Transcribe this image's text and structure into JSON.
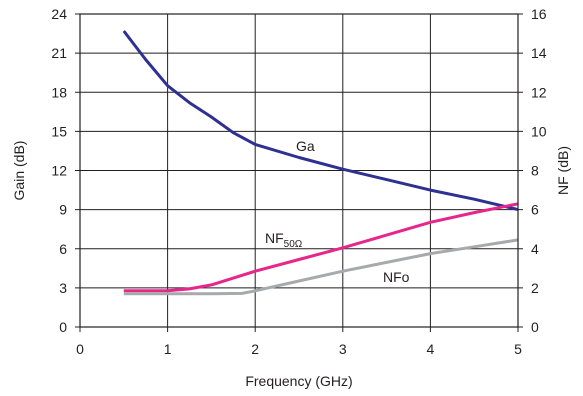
{
  "chart_data": {
    "type": "line",
    "xlabel": "Frequency (GHz)",
    "ylabel_left": "Gain (dB)",
    "ylabel_right": "NF (dB)",
    "xlim": [
      0,
      5
    ],
    "ylim_left": [
      0,
      24
    ],
    "ylim_right": [
      0,
      16
    ],
    "x_ticks": [
      0,
      1,
      2,
      3,
      4,
      5
    ],
    "y_left_ticks": [
      0,
      3,
      6,
      9,
      12,
      15,
      18,
      21,
      24
    ],
    "y_right_ticks": [
      0,
      2,
      4,
      6,
      8,
      10,
      12,
      14,
      16
    ],
    "grid": true,
    "series": [
      {
        "name": "Ga",
        "axis": "left",
        "color": "#2e3192",
        "x": [
          0.5,
          0.75,
          1.0,
          1.25,
          1.5,
          1.75,
          2.0,
          2.5,
          3.0,
          3.5,
          4.0,
          4.5,
          5.0
        ],
        "y": [
          22.7,
          20.5,
          18.5,
          17.2,
          16.1,
          14.9,
          14.0,
          13.0,
          12.1,
          11.3,
          10.5,
          9.8,
          9.0
        ]
      },
      {
        "name": "NF",
        "name_sub": "50Ω",
        "axis": "right",
        "color": "#e6268b",
        "x": [
          0.5,
          1.0,
          1.25,
          1.5,
          1.75,
          2.0,
          2.5,
          3.0,
          3.5,
          4.0,
          4.5,
          5.0
        ],
        "y": [
          1.85,
          1.85,
          1.95,
          2.15,
          2.5,
          2.85,
          3.45,
          4.05,
          4.7,
          5.35,
          5.85,
          6.3
        ]
      },
      {
        "name": "NFo",
        "axis": "right",
        "color": "#a7a9ac",
        "x": [
          0.5,
          1.0,
          1.5,
          1.85,
          2.0,
          2.5,
          3.0,
          3.5,
          4.0,
          4.5,
          5.0
        ],
        "y": [
          1.7,
          1.7,
          1.7,
          1.72,
          1.85,
          2.35,
          2.85,
          3.3,
          3.75,
          4.1,
          4.45
        ]
      }
    ]
  }
}
